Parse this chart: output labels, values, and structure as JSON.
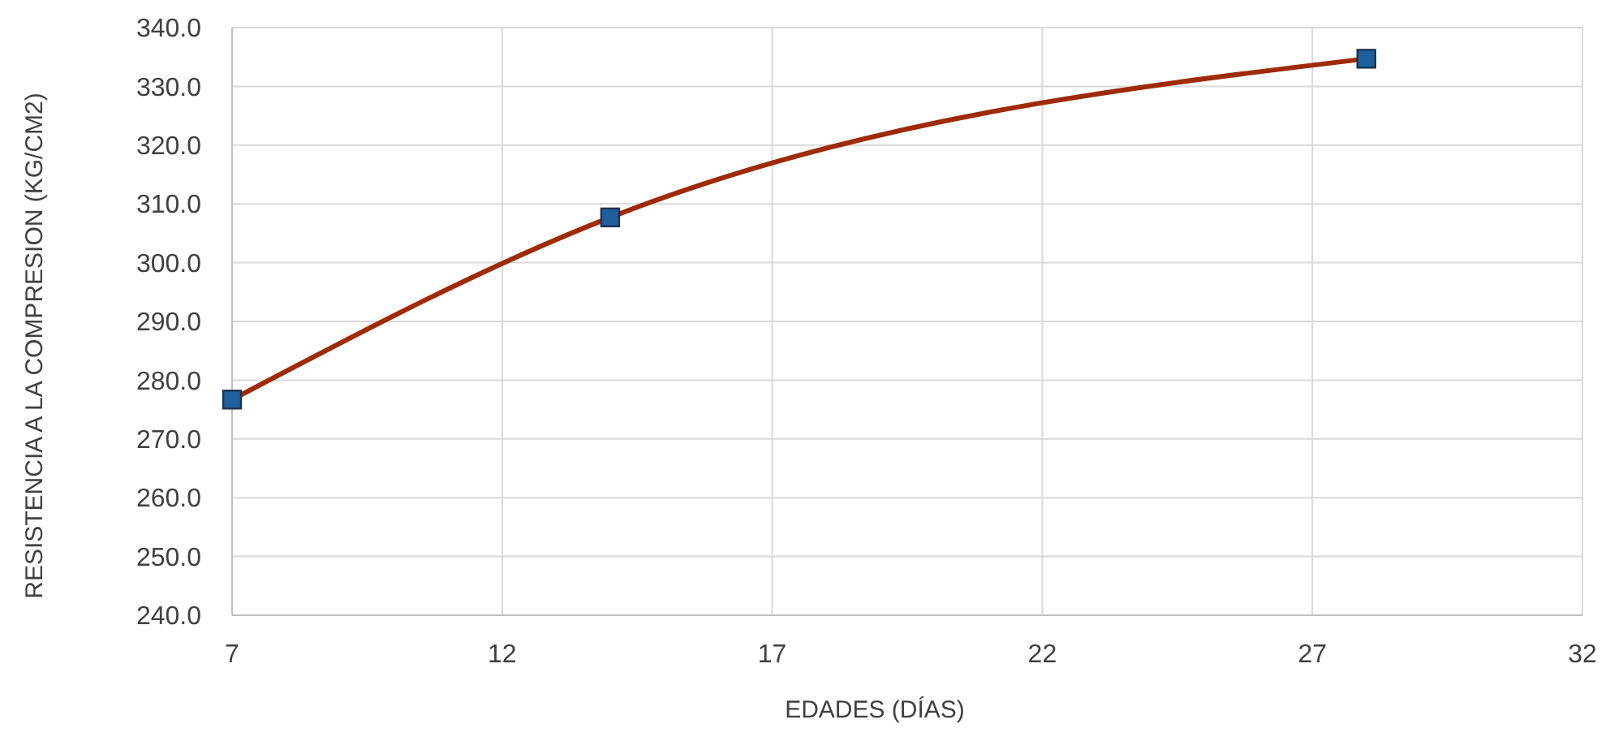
{
  "chart_data": {
    "type": "line",
    "xlabel": "EDADES (DÍAS)",
    "ylabel": "RESISTENCIA A LA COMPRESION (KG/CM2)",
    "series": [
      {
        "color": "#9e2a06",
        "colors": [
          "#1f5f9e",
          "#1f5f9e",
          "#1f5f9e"
        ],
        "x": [
          7,
          14,
          28
        ],
        "values": [
          276.7,
          307.7,
          334.7
        ]
      }
    ],
    "xlim": [
      7,
      32
    ],
    "xticks": [
      7,
      12,
      17,
      22,
      27,
      32
    ],
    "ylim": [
      240,
      340
    ],
    "yticks": [
      {
        "value": 240,
        "label": "240.0"
      },
      {
        "value": 250,
        "label": "250.0"
      },
      {
        "value": 260,
        "label": "260.0"
      },
      {
        "value": 270,
        "label": "270.0"
      },
      {
        "value": 280,
        "label": "280.0"
      },
      {
        "value": 290,
        "label": "290.0"
      },
      {
        "value": 300,
        "label": "300.0"
      },
      {
        "value": 310,
        "label": "310.0"
      },
      {
        "value": 320,
        "label": "320.0"
      },
      {
        "value": 330,
        "label": "330.0"
      },
      {
        "value": 340,
        "label": "340.0"
      }
    ],
    "grid": true,
    "marker": "square",
    "line_style": "solid"
  }
}
